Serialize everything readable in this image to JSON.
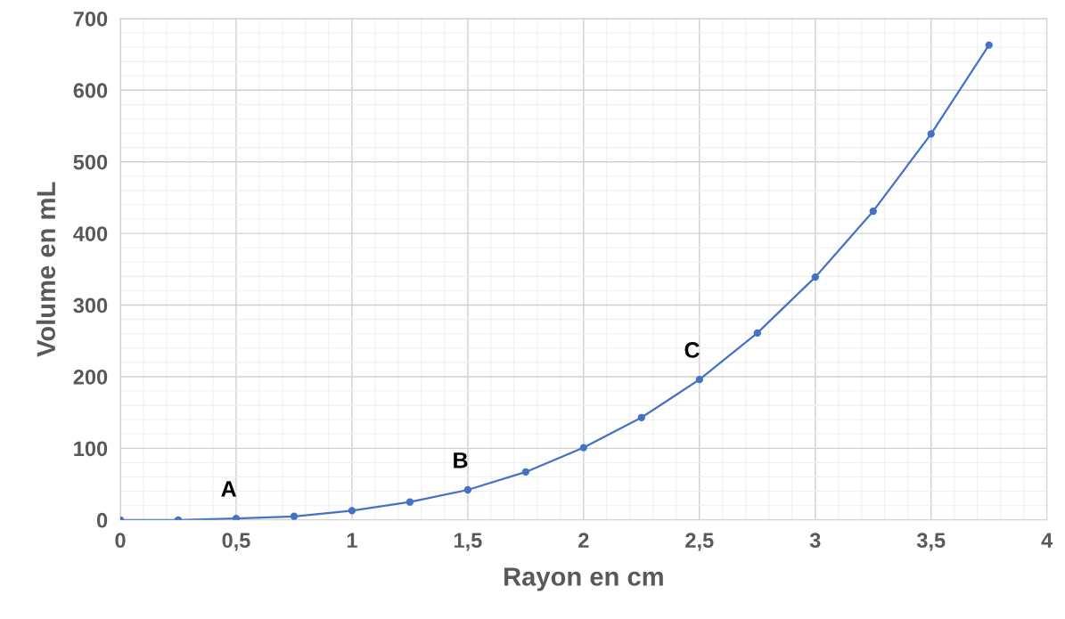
{
  "chart_data": {
    "type": "line",
    "xlabel": "Rayon en cm",
    "ylabel": "Volume en mL",
    "x": [
      0,
      0.25,
      0.5,
      0.75,
      1,
      1.25,
      1.5,
      1.75,
      2,
      2.25,
      2.5,
      2.75,
      3,
      3.25,
      3.5,
      3.75
    ],
    "series": [
      {
        "color": "#4472c4",
        "values": [
          0,
          0,
          2,
          5,
          13,
          25,
          42,
          67,
          101,
          143,
          196,
          261,
          339,
          431,
          539,
          663
        ]
      }
    ],
    "xlim": [
      0,
      4
    ],
    "ylim": [
      0,
      700
    ],
    "xticks": [
      0,
      {
        "value": 0.5,
        "label": "0,5"
      },
      1,
      {
        "value": 1.5,
        "label": "1,5"
      },
      2,
      {
        "value": 2.5,
        "label": "2,5"
      },
      3,
      {
        "value": 3.5,
        "label": "3,5"
      },
      4
    ],
    "yticks": [
      0,
      100,
      200,
      300,
      400,
      500,
      600,
      700
    ],
    "grid": true,
    "marker": "circle",
    "line_style": "solid",
    "annotations": [
      {
        "text": "A",
        "x": 0.5,
        "y": 2
      },
      {
        "text": "B",
        "x": 1.5,
        "y": 42
      },
      {
        "text": "C",
        "x": 2.5,
        "y": 196
      }
    ]
  }
}
